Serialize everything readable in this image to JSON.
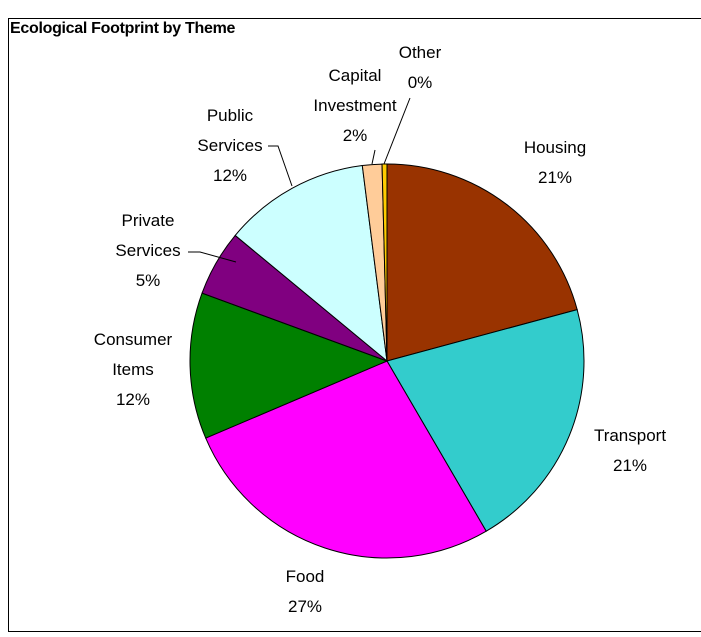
{
  "chart_data": {
    "type": "pie",
    "title": "Ecological Footprint by Theme",
    "categories": [
      "Housing",
      "Transport",
      "Food",
      "Consumer Items",
      "Private Services",
      "Public Services",
      "Capital Investment",
      "Other"
    ],
    "values": [
      20.8,
      20.8,
      27.0,
      12.0,
      5.4,
      12.0,
      1.6,
      0.4
    ],
    "value_labels": [
      "21%",
      "21%",
      "27%",
      "12%",
      "5%",
      "12%",
      "2%",
      "0%"
    ],
    "colors": [
      "#993300",
      "#33cccc",
      "#ff00ff",
      "#008000",
      "#800080",
      "#ccffff",
      "#ffcc99",
      "#ffcc00"
    ]
  }
}
